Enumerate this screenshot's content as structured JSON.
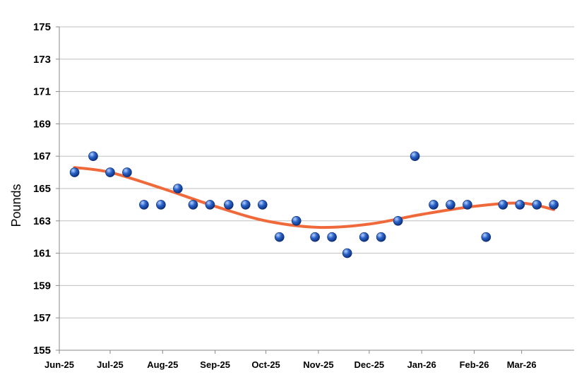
{
  "chart_data": {
    "type": "scatter",
    "title": "",
    "xlabel": "",
    "ylabel": "Pounds",
    "ylim": [
      155,
      175
    ],
    "y_ticks": [
      155,
      157,
      159,
      161,
      163,
      165,
      167,
      169,
      171,
      173,
      175
    ],
    "x_range": [
      "2025-06-01",
      "2026-04-01"
    ],
    "x_ticks": [
      {
        "date": "2025-06-01",
        "label": "Jun-25"
      },
      {
        "date": "2025-07-01",
        "label": "Jul-25"
      },
      {
        "date": "2025-08-01",
        "label": "Aug-25"
      },
      {
        "date": "2025-09-01",
        "label": "Sep-25"
      },
      {
        "date": "2025-10-01",
        "label": "Oct-25"
      },
      {
        "date": "2025-11-01",
        "label": "Nov-25"
      },
      {
        "date": "2025-12-01",
        "label": "Dec-25"
      },
      {
        "date": "2026-01-01",
        "label": "Jan-26"
      },
      {
        "date": "2026-02-01",
        "label": "Feb-26"
      },
      {
        "date": "2026-03-01",
        "label": "Mar-26"
      }
    ],
    "grid": "horizontal",
    "legend": "none",
    "series": [
      {
        "points": [
          {
            "x": "2025-06-10",
            "y": 166
          },
          {
            "x": "2025-06-21",
            "y": 167
          },
          {
            "x": "2025-07-01",
            "y": 166
          },
          {
            "x": "2025-07-11",
            "y": 166
          },
          {
            "x": "2025-07-21",
            "y": 164
          },
          {
            "x": "2025-07-31",
            "y": 164
          },
          {
            "x": "2025-08-10",
            "y": 165
          },
          {
            "x": "2025-08-19",
            "y": 164
          },
          {
            "x": "2025-08-29",
            "y": 164
          },
          {
            "x": "2025-09-09",
            "y": 164
          },
          {
            "x": "2025-09-19",
            "y": 164
          },
          {
            "x": "2025-09-29",
            "y": 164
          },
          {
            "x": "2025-10-09",
            "y": 162
          },
          {
            "x": "2025-10-19",
            "y": 163
          },
          {
            "x": "2025-10-30",
            "y": 162
          },
          {
            "x": "2025-11-09",
            "y": 162
          },
          {
            "x": "2025-11-18",
            "y": 161
          },
          {
            "x": "2025-11-28",
            "y": 162
          },
          {
            "x": "2025-12-08",
            "y": 162
          },
          {
            "x": "2025-12-18",
            "y": 163
          },
          {
            "x": "2025-12-28",
            "y": 167
          },
          {
            "x": "2026-01-08",
            "y": 164
          },
          {
            "x": "2026-01-18",
            "y": 164
          },
          {
            "x": "2026-01-28",
            "y": 164
          },
          {
            "x": "2026-02-08",
            "y": 162
          },
          {
            "x": "2026-02-18",
            "y": 164
          },
          {
            "x": "2026-02-28",
            "y": 164
          },
          {
            "x": "2026-03-10",
            "y": 164
          },
          {
            "x": "2026-03-20",
            "y": 164
          }
        ]
      }
    ],
    "trendline": {
      "type": "polynomial",
      "color": "#f0693a",
      "points": [
        {
          "x": "2025-06-10",
          "y": 166.3
        },
        {
          "x": "2025-07-01",
          "y": 166.0
        },
        {
          "x": "2025-08-01",
          "y": 165.0
        },
        {
          "x": "2025-09-01",
          "y": 163.9
        },
        {
          "x": "2025-10-01",
          "y": 163.0
        },
        {
          "x": "2025-11-01",
          "y": 162.6
        },
        {
          "x": "2025-12-01",
          "y": 162.8
        },
        {
          "x": "2026-01-01",
          "y": 163.4
        },
        {
          "x": "2026-02-01",
          "y": 163.9
        },
        {
          "x": "2026-03-01",
          "y": 164.1
        },
        {
          "x": "2026-03-20",
          "y": 163.7
        }
      ]
    },
    "marker_colors": {
      "light": "#b9d3ff",
      "mid": "#2a63c9",
      "dark": "#0b2a72"
    },
    "gridline_color": "#bfbfbf"
  }
}
